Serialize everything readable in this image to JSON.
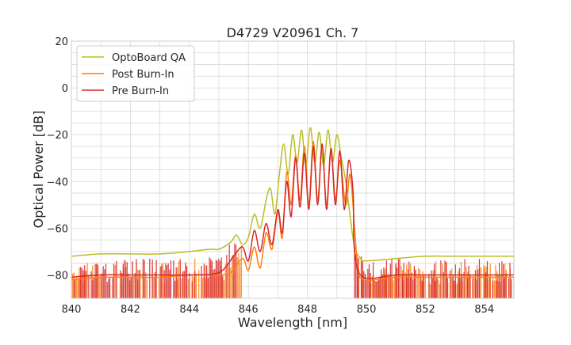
{
  "chart_data": {
    "type": "line",
    "title": "D4729 V20961 Ch. 7",
    "xlabel": "Wavelength [nm]",
    "ylabel": "Optical Power [dB]",
    "xlim": [
      840,
      855
    ],
    "ylim": [
      -90,
      20
    ],
    "xticks": [
      840,
      842,
      844,
      846,
      848,
      850,
      852,
      854
    ],
    "yticks": [
      20,
      0,
      -20,
      -40,
      -60,
      -80
    ],
    "grid": true,
    "legend_position": "top-left",
    "series": [
      {
        "name": "OptoBoard QA",
        "color": "#bcbd22",
        "x": [
          840.0,
          841.0,
          842.0,
          843.0,
          844.0,
          844.7,
          845.0,
          845.4,
          845.6,
          845.8,
          846.0,
          846.2,
          846.4,
          846.6,
          846.75,
          846.9,
          847.05,
          847.2,
          847.35,
          847.5,
          847.65,
          847.8,
          847.95,
          848.1,
          848.25,
          848.4,
          848.55,
          848.7,
          848.85,
          849.0,
          849.15,
          849.3,
          849.45,
          849.6,
          849.8,
          850.0,
          851.0,
          852.0,
          853.0,
          854.0,
          855.0
        ],
        "y": [
          -72,
          -71,
          -71,
          -71,
          -70,
          -69,
          -69,
          -66,
          -63,
          -67,
          -64,
          -54,
          -60,
          -48,
          -43,
          -54,
          -37,
          -24,
          -37,
          -20,
          -32,
          -18,
          -33,
          -17,
          -32,
          -19,
          -33,
          -18,
          -32,
          -20,
          -30,
          -40,
          -55,
          -68,
          -73,
          -74,
          -73,
          -72,
          -72,
          -72,
          -72
        ]
      },
      {
        "name": "Post Burn-In",
        "color": "#ff7f0e",
        "x": [
          840.0,
          841.0,
          842.0,
          843.0,
          844.0,
          845.0,
          845.4,
          845.8,
          846.0,
          846.2,
          846.4,
          846.6,
          846.8,
          847.0,
          847.15,
          847.3,
          847.45,
          847.6,
          847.75,
          847.9,
          848.05,
          848.2,
          848.35,
          848.5,
          848.65,
          848.8,
          848.95,
          849.1,
          849.3,
          849.45,
          849.6,
          849.7,
          849.9,
          851.0,
          852.0,
          853.0,
          854.0,
          855.0
        ],
        "y": [
          -82,
          -81,
          -81,
          -81,
          -80,
          -80,
          -79,
          -73,
          -78,
          -68,
          -77,
          -62,
          -69,
          -53,
          -64,
          -36,
          -50,
          -29,
          -48,
          -25,
          -50,
          -23,
          -48,
          -25,
          -50,
          -26,
          -48,
          -31,
          -50,
          -37,
          -60,
          -75,
          -82,
          -81,
          -81,
          -81,
          -81,
          -81
        ]
      },
      {
        "name": "Pre Burn-In",
        "color": "#d62728",
        "x": [
          840.0,
          841.0,
          842.0,
          843.0,
          844.0,
          845.0,
          845.5,
          845.8,
          846.0,
          846.2,
          846.4,
          846.6,
          846.8,
          847.0,
          847.15,
          847.3,
          847.45,
          847.6,
          847.75,
          847.9,
          848.05,
          848.2,
          848.35,
          848.5,
          848.65,
          848.8,
          848.95,
          849.1,
          849.25,
          849.4,
          849.55,
          849.6,
          849.9,
          851.0,
          852.0,
          853.0,
          854.0,
          855.0
        ],
        "y": [
          -81,
          -80,
          -80,
          -80,
          -80,
          -79,
          -72,
          -68,
          -74,
          -61,
          -70,
          -58,
          -67,
          -52,
          -62,
          -40,
          -55,
          -30,
          -51,
          -28,
          -52,
          -25,
          -50,
          -24,
          -52,
          -26,
          -50,
          -27,
          -52,
          -31,
          -45,
          -70,
          -81,
          -80,
          -80,
          -80,
          -80,
          -80
        ]
      }
    ]
  }
}
